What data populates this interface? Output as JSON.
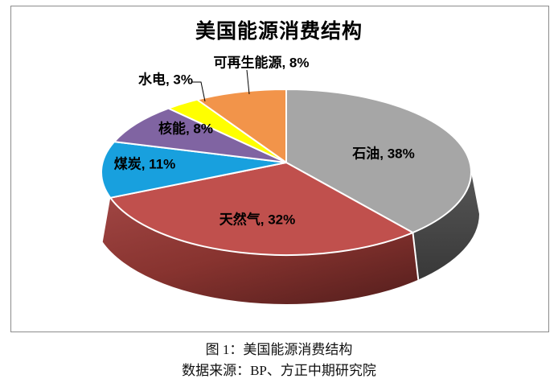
{
  "page": {
    "background": "#ffffff",
    "frame_border_color": "#8c8c8c"
  },
  "chart": {
    "title": "美国能源消费结构",
    "caption": "图 1：美国能源消费结构",
    "source": "数据来源：BP、方正中期研究院"
  },
  "chart_data": {
    "type": "pie",
    "is_3d": true,
    "title": "美国能源消费结构",
    "start_angle_deg": 0,
    "direction": "clockwise",
    "legend": "none",
    "label_format": "category, percent",
    "slices": [
      {
        "key": "oil",
        "name": "石油",
        "value_pct": 38,
        "label": "石油, 38%",
        "color": "#A6A6A6",
        "side_colors": [
          "#565656",
          "#383838"
        ]
      },
      {
        "key": "natural-gas",
        "name": "天然气",
        "value_pct": 32,
        "label": "天然气, 32%",
        "color": "#C0504D",
        "side_colors": [
          "#A04543",
          "#5E2220"
        ]
      },
      {
        "key": "coal",
        "name": "煤炭",
        "value_pct": 11,
        "label": "煤炭, 11%",
        "color": "#18A0DE"
      },
      {
        "key": "nuclear",
        "name": "核能",
        "value_pct": 8,
        "label": "核能, 8%",
        "color": "#8064A2"
      },
      {
        "key": "hydro",
        "name": "水电",
        "value_pct": 3,
        "label": "水电, 3%",
        "color": "#FFFF00"
      },
      {
        "key": "renewables",
        "name": "可再生能源",
        "value_pct": 8,
        "label": "可再生能源, 8%",
        "color": "#F2944A"
      }
    ],
    "caption": "图 1：美国能源消费结构",
    "source": "数据来源：BP、方正中期研究院",
    "separator_color": "#FFFFFF",
    "leader_line_color": "#000000"
  }
}
